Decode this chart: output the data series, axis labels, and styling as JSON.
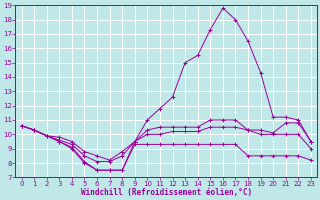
{
  "xlabel": "Windchill (Refroidissement éolien,°C)",
  "line_color": "#990099",
  "bg_color": "#c0e8e8",
  "grid_color": "#ffffff",
  "xlim": [
    -0.5,
    23.5
  ],
  "ylim": [
    7,
    19
  ],
  "xticks": [
    0,
    1,
    2,
    3,
    4,
    5,
    6,
    7,
    8,
    9,
    10,
    11,
    12,
    13,
    14,
    15,
    16,
    17,
    18,
    19,
    20,
    21,
    22,
    23
  ],
  "yticks": [
    7,
    8,
    9,
    10,
    11,
    12,
    13,
    14,
    15,
    16,
    17,
    18,
    19
  ],
  "series": [
    {
      "x": [
        0,
        1,
        2,
        3,
        4,
        5,
        6,
        7,
        8,
        9,
        10,
        11,
        12,
        13,
        14,
        15,
        16,
        17,
        18,
        19,
        20,
        21,
        22,
        23
      ],
      "y": [
        10.6,
        10.3,
        9.9,
        9.5,
        9.1,
        8.1,
        7.5,
        7.5,
        7.5,
        9.5,
        11.0,
        11.8,
        12.6,
        15.0,
        15.5,
        17.3,
        18.8,
        18.0,
        16.5,
        14.3,
        11.2,
        11.2,
        11.0,
        9.5
      ]
    },
    {
      "x": [
        0,
        1,
        2,
        3,
        4,
        5,
        6,
        7,
        8,
        9,
        10,
        11,
        12,
        13,
        14,
        15,
        16,
        17,
        18,
        19,
        20,
        21,
        22,
        23
      ],
      "y": [
        10.6,
        10.3,
        9.9,
        9.6,
        9.3,
        8.5,
        8.1,
        8.1,
        8.5,
        9.5,
        10.3,
        10.5,
        10.5,
        10.5,
        10.5,
        11.0,
        11.0,
        11.0,
        10.3,
        10.3,
        10.1,
        10.8,
        10.8,
        9.5
      ]
    },
    {
      "x": [
        0,
        1,
        2,
        3,
        4,
        5,
        6,
        7,
        8,
        9,
        10,
        11,
        12,
        13,
        14,
        15,
        16,
        17,
        18,
        19,
        20,
        21,
        22,
        23
      ],
      "y": [
        10.6,
        10.3,
        9.9,
        9.8,
        9.5,
        8.8,
        8.5,
        8.2,
        8.8,
        9.5,
        10.0,
        10.0,
        10.2,
        10.2,
        10.2,
        10.5,
        10.5,
        10.5,
        10.3,
        10.0,
        10.0,
        10.0,
        10.0,
        9.0
      ]
    },
    {
      "x": [
        0,
        1,
        2,
        3,
        4,
        5,
        6,
        7,
        8,
        9,
        10,
        11,
        12,
        13,
        14,
        15,
        16,
        17,
        18,
        19,
        20,
        21,
        22,
        23
      ],
      "y": [
        10.6,
        10.3,
        9.9,
        9.5,
        9.0,
        8.0,
        7.5,
        7.5,
        7.5,
        9.3,
        9.3,
        9.3,
        9.3,
        9.3,
        9.3,
        9.3,
        9.3,
        9.3,
        8.5,
        8.5,
        8.5,
        8.5,
        8.5,
        8.2
      ]
    }
  ]
}
